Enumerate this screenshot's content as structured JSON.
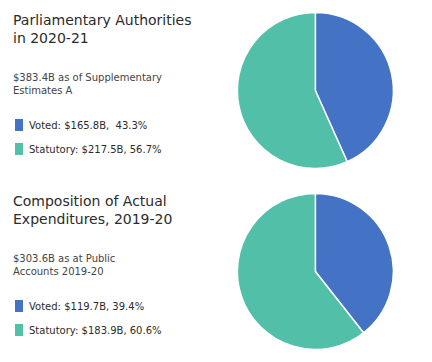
{
  "chart_data": [
    {
      "type": "pie",
      "title": "Parliamentary Authorities\nin 2020-21",
      "subtitle": "$383.4B as of Supplementary\nEstimates A",
      "categories": [
        "Voted: $165.8B,  43.3%",
        "Statutory: $217.5B, 56.7%"
      ],
      "values": [
        43.3,
        56.7
      ],
      "colors": [
        "#4472C4",
        "#52BFA8"
      ],
      "legend": "left"
    },
    {
      "type": "pie",
      "title": "Composition of Actual\nExpenditures, 2019-20",
      "subtitle": "$303.6B as at Public\nAccounts 2019-20",
      "categories": [
        "Voted: $119.7B, 39.4%",
        "Statutory: $183.9B, 60.6%"
      ],
      "values": [
        39.4,
        60.6
      ],
      "colors": [
        "#4472C4",
        "#52BFA8"
      ],
      "legend": "left"
    }
  ]
}
